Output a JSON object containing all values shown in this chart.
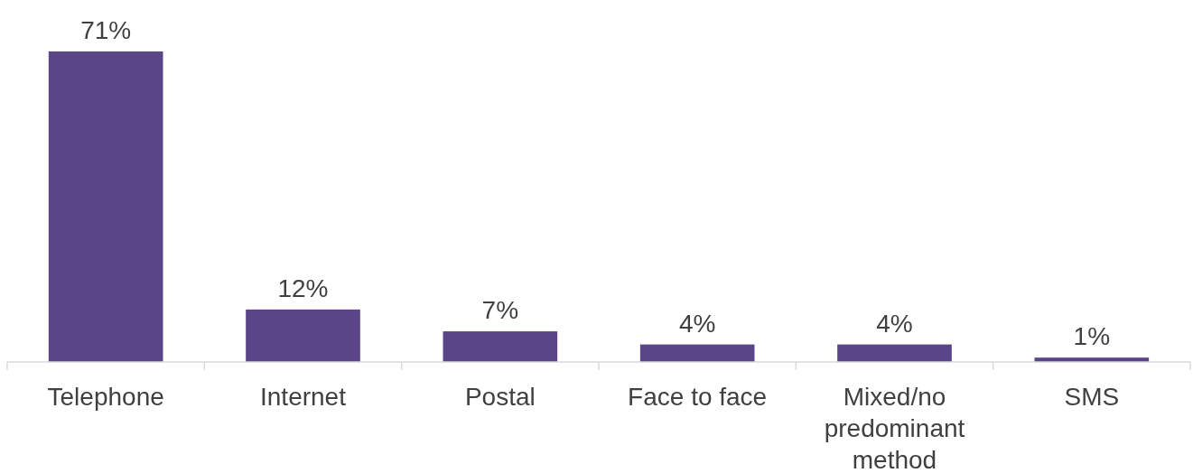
{
  "chart_data": {
    "type": "bar",
    "categories": [
      "Telephone",
      "Internet",
      "Postal",
      "Face to face",
      "Mixed/no predominant method",
      "SMS"
    ],
    "values": [
      71,
      12,
      7,
      4,
      4,
      1
    ],
    "value_labels": [
      "71%",
      "12%",
      "7%",
      "4%",
      "4%",
      "1%"
    ],
    "color": "#5b4589"
  }
}
